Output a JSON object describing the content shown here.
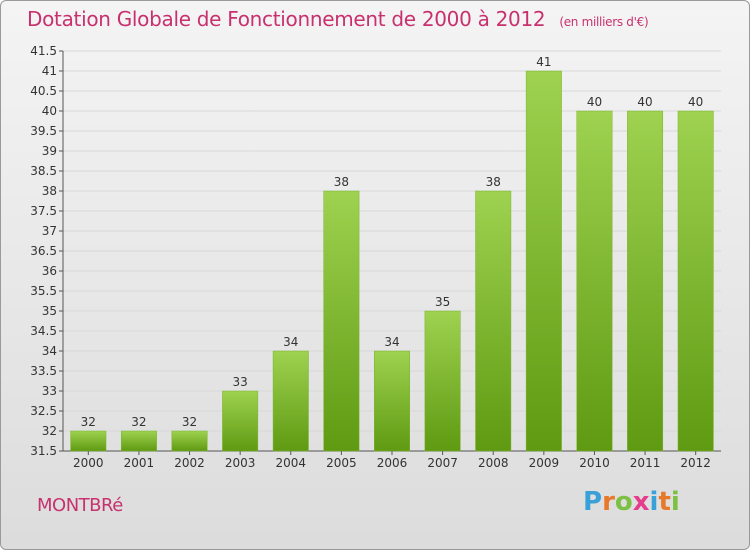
{
  "title": "Dotation Globale de Fonctionnement de 2000 à 2012",
  "unit": "(en milliers d'€)",
  "commune": "MONTBRé",
  "logo": {
    "letters": [
      "P",
      "r",
      "o",
      "x",
      "i",
      "t",
      "i"
    ],
    "colors": [
      "#3aa0d8",
      "#e8782a",
      "#7cc144",
      "#e63c8c",
      "#3aa0d8",
      "#e8782a",
      "#7cc144"
    ]
  },
  "colors": {
    "title": "#c8316e",
    "bar_top": "#9ed250",
    "bar_bottom": "#5f9a12",
    "grid": "#d8d8d8"
  },
  "chart_data": {
    "type": "bar",
    "categories": [
      "2000",
      "2001",
      "2002",
      "2003",
      "2004",
      "2005",
      "2006",
      "2007",
      "2008",
      "2009",
      "2010",
      "2011",
      "2012"
    ],
    "values": [
      32,
      32,
      32,
      33,
      34,
      38,
      34,
      35,
      38,
      41,
      40,
      40,
      40
    ],
    "value_labels": [
      "32",
      "32",
      "32",
      "33",
      "34",
      "38",
      "34",
      "35",
      "38",
      "41",
      "40",
      "40",
      "40"
    ],
    "title": "Dotation Globale de Fonctionnement de 2000 à 2012",
    "xlabel": "",
    "ylabel": "",
    "ylim": [
      31.5,
      41.5
    ],
    "yticks": [
      31.5,
      32,
      32.5,
      33,
      33.5,
      34,
      34.5,
      35,
      35.5,
      36,
      36.5,
      37,
      37.5,
      38,
      38.5,
      39,
      39.5,
      40,
      40.5,
      41,
      41.5
    ],
    "ytick_labels": [
      "31.5",
      "32",
      "32.5",
      "33",
      "33.5",
      "34",
      "34.5",
      "35",
      "35.5",
      "36",
      "36.5",
      "37",
      "37.5",
      "38",
      "38.5",
      "39",
      "39.5",
      "40",
      "40.5",
      "41",
      "41.5"
    ],
    "grid": true
  }
}
